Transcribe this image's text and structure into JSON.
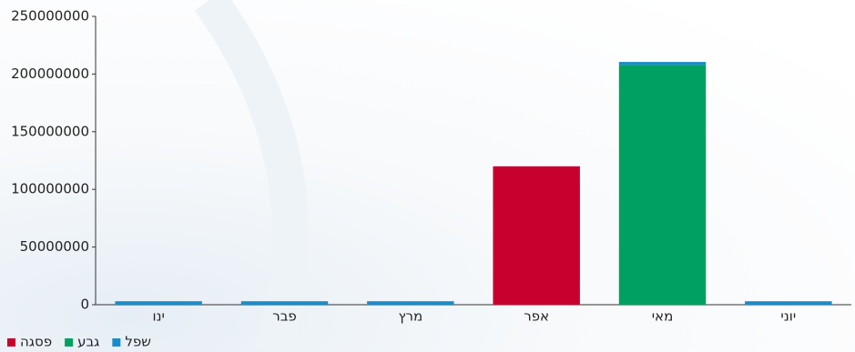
{
  "chart_data": {
    "type": "bar",
    "stacked": true,
    "categories": [
      "ינו",
      "פבר",
      "מרץ",
      "אפר",
      "מאי",
      "יוני"
    ],
    "series": [
      {
        "name": "פסגה",
        "color": "#c8002e",
        "values": [
          0,
          0,
          0,
          120000000,
          0,
          0
        ]
      },
      {
        "name": "גבע",
        "color": "#00a060",
        "values": [
          0,
          0,
          0,
          0,
          208000000,
          0
        ]
      },
      {
        "name": "שפל",
        "color": "#1a8ccc",
        "values": [
          3000000,
          3000000,
          3000000,
          0,
          2500000,
          3000000
        ]
      }
    ],
    "ylim": [
      0,
      250000000
    ],
    "yticks": [
      0,
      50000000,
      100000000,
      150000000,
      200000000,
      250000000
    ]
  }
}
